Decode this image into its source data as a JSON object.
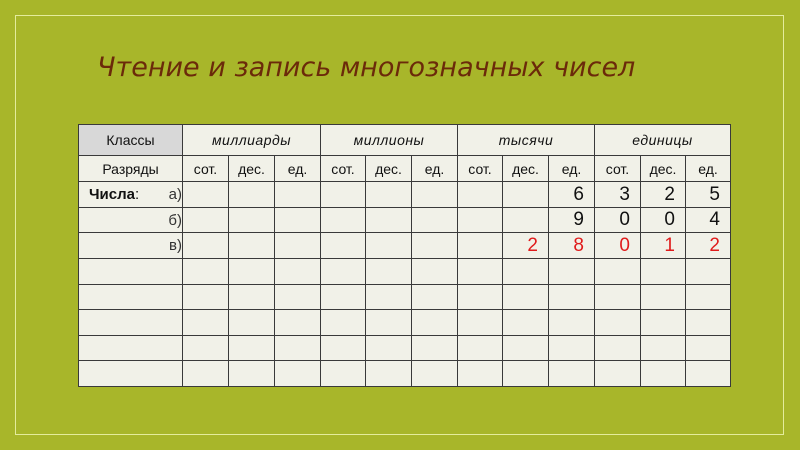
{
  "title": "Чтение и запись многозначных чисел",
  "colors": {
    "background": "#a8b62a",
    "title": "#6b2a0a",
    "highlight": "#e01b1b"
  },
  "table": {
    "classes_label": "Классы",
    "classes": [
      "миллиарды",
      "миллионы",
      "тысячи",
      "единицы"
    ],
    "ranks_label": "Разряды",
    "ranks": [
      "сот.",
      "дес.",
      "ед.",
      "сот.",
      "дес.",
      "ед.",
      "сот.",
      "дес.",
      "ед.",
      "сот.",
      "дес.",
      "ед."
    ],
    "numbers_label": "Числа",
    "numbers_colon": ":",
    "rows": [
      {
        "letter": "а)",
        "digits": [
          "",
          "",
          "",
          "",
          "",
          "",
          "",
          "",
          "6",
          "3",
          "2",
          "5"
        ],
        "red": false
      },
      {
        "letter": "б)",
        "digits": [
          "",
          "",
          "",
          "",
          "",
          "",
          "",
          "",
          "9",
          "0",
          "0",
          "4"
        ],
        "red": false
      },
      {
        "letter": "в)",
        "digits": [
          "",
          "",
          "",
          "",
          "",
          "",
          "",
          "2",
          "8",
          "0",
          "1",
          "2"
        ],
        "red": true
      },
      {
        "letter": "",
        "digits": [
          "",
          "",
          "",
          "",
          "",
          "",
          "",
          "",
          "",
          "",
          "",
          ""
        ],
        "red": false
      },
      {
        "letter": "",
        "digits": [
          "",
          "",
          "",
          "",
          "",
          "",
          "",
          "",
          "",
          "",
          "",
          ""
        ],
        "red": false
      },
      {
        "letter": "",
        "digits": [
          "",
          "",
          "",
          "",
          "",
          "",
          "",
          "",
          "",
          "",
          "",
          ""
        ],
        "red": false
      },
      {
        "letter": "",
        "digits": [
          "",
          "",
          "",
          "",
          "",
          "",
          "",
          "",
          "",
          "",
          "",
          ""
        ],
        "red": false
      },
      {
        "letter": "",
        "digits": [
          "",
          "",
          "",
          "",
          "",
          "",
          "",
          "",
          "",
          "",
          "",
          ""
        ],
        "red": false
      }
    ]
  }
}
